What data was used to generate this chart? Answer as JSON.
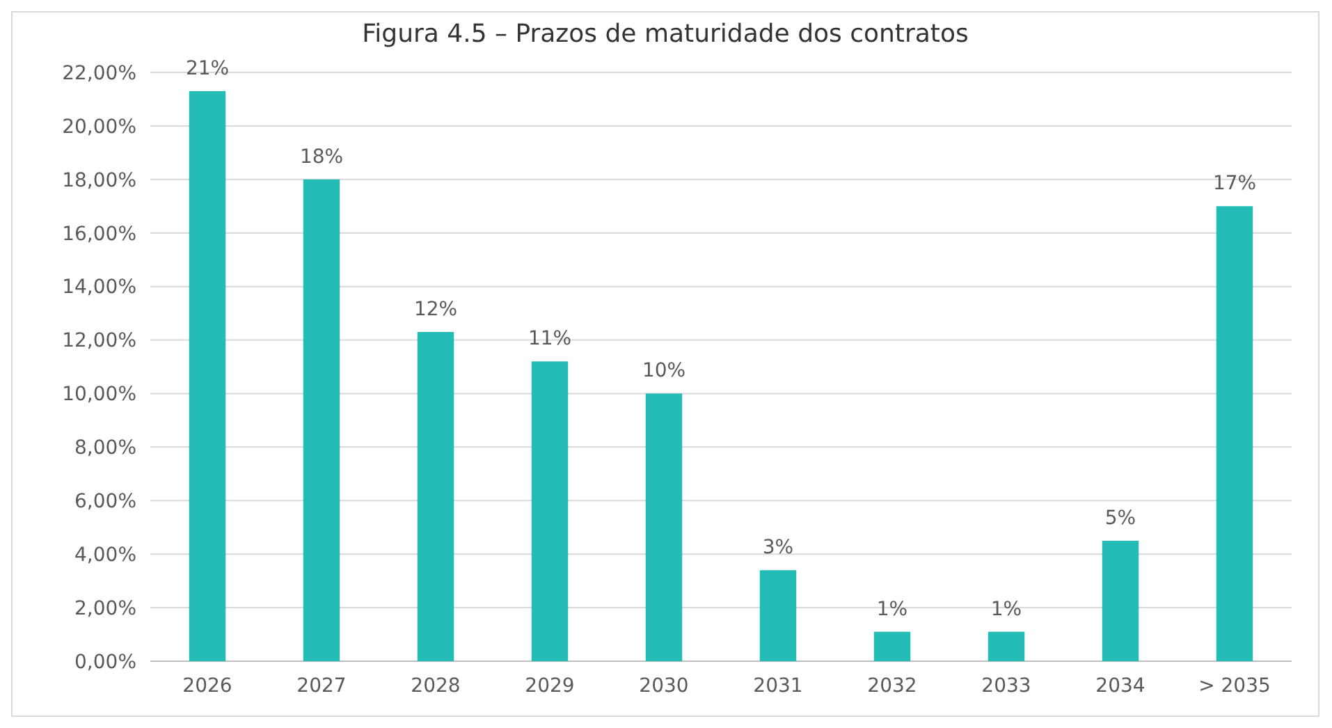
{
  "chart_data": {
    "type": "bar",
    "title": "Figura 4.5 – Prazos de maturidade dos contratos",
    "categories": [
      "2026",
      "2027",
      "2028",
      "2029",
      "2030",
      "2031",
      "2032",
      "2033",
      "2034",
      "> 2035"
    ],
    "values": [
      21.3,
      18.0,
      12.3,
      11.2,
      10.0,
      3.4,
      1.1,
      1.1,
      4.5,
      17.0
    ],
    "value_labels": [
      "21%",
      "18%",
      "12%",
      "11%",
      "10%",
      "3%",
      "1%",
      "1%",
      "5%",
      "17%"
    ],
    "color": "#22bbb6",
    "ylim": [
      0,
      22
    ],
    "yticks": [
      {
        "value": 0,
        "label": "0,00%"
      },
      {
        "value": 2,
        "label": "2,00%"
      },
      {
        "value": 4,
        "label": "4,00%"
      },
      {
        "value": 6,
        "label": "6,00%"
      },
      {
        "value": 8,
        "label": "8,00%"
      },
      {
        "value": 10,
        "label": "10,00%"
      },
      {
        "value": 12,
        "label": "12,00%"
      },
      {
        "value": 14,
        "label": "14,00%"
      },
      {
        "value": 16,
        "label": "16,00%"
      },
      {
        "value": 18,
        "label": "18,00%"
      },
      {
        "value": 20,
        "label": "20,00%"
      },
      {
        "value": 22,
        "label": "22,00%"
      }
    ],
    "grid": "y"
  }
}
